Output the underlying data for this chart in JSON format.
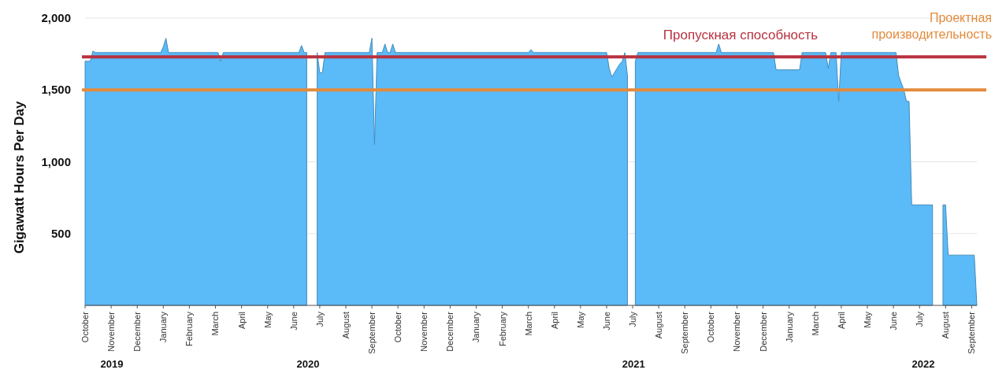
{
  "chart_data": {
    "type": "area",
    "ylabel": "Gigawatt Hours Per Day",
    "categories": [
      "October",
      null,
      null,
      null,
      null,
      null,
      null,
      null,
      null,
      null,
      "November",
      null,
      null,
      null,
      null,
      null,
      null,
      null,
      null,
      null,
      "December",
      null,
      null,
      null,
      null,
      null,
      null,
      null,
      null,
      null,
      "January",
      null,
      null,
      null,
      null,
      null,
      null,
      null,
      null,
      null,
      "February",
      null,
      null,
      null,
      null,
      null,
      null,
      null,
      null,
      null,
      "March",
      null,
      null,
      null,
      null,
      null,
      null,
      null,
      null,
      null,
      "April",
      null,
      null,
      null,
      null,
      null,
      null,
      null,
      null,
      null,
      "May",
      null,
      null,
      null,
      null,
      null,
      null,
      null,
      null,
      null,
      "June",
      null,
      null,
      null,
      null,
      null,
      null,
      null,
      null,
      null,
      "July",
      null,
      null,
      null,
      null,
      null,
      null,
      null,
      null,
      null,
      "August",
      null,
      null,
      null,
      null,
      null,
      null,
      null,
      null,
      null,
      "September",
      null,
      null,
      null,
      null,
      null,
      null,
      null,
      null,
      null,
      "October",
      null,
      null,
      null,
      null,
      null,
      null,
      null,
      null,
      null,
      "November",
      null,
      null,
      null,
      null,
      null,
      null,
      null,
      null,
      null,
      "December",
      null,
      null,
      null,
      null,
      null,
      null,
      null,
      null,
      null,
      "January",
      null,
      null,
      null,
      null,
      null,
      null,
      null,
      null,
      null,
      "February",
      null,
      null,
      null,
      null,
      null,
      null,
      null,
      null,
      null,
      "March",
      null,
      null,
      null,
      null,
      null,
      null,
      null,
      null,
      null,
      "April",
      null,
      null,
      null,
      null,
      null,
      null,
      null,
      null,
      null,
      "May",
      null,
      null,
      null,
      null,
      null,
      null,
      null,
      null,
      null,
      "June",
      null,
      null,
      null,
      null,
      null,
      null,
      null,
      null,
      null,
      "July",
      null,
      null,
      null,
      null,
      null,
      null,
      null,
      null,
      null,
      "August",
      null,
      null,
      null,
      null,
      null,
      null,
      null,
      null,
      null,
      "September",
      null,
      null,
      null,
      null,
      null,
      null,
      null,
      null,
      null,
      "October",
      null,
      null,
      null,
      null,
      null,
      null,
      null,
      null,
      null,
      "November",
      null,
      null,
      null,
      null,
      null,
      null,
      null,
      null,
      null,
      "December",
      null,
      null,
      null,
      null,
      null,
      null,
      null,
      null,
      null,
      "January",
      null,
      null,
      null,
      null,
      null,
      null,
      null,
      null,
      null,
      "March",
      null,
      null,
      null,
      null,
      null,
      null,
      null,
      null,
      null,
      "April",
      null,
      null,
      null,
      null,
      null,
      null,
      null,
      null,
      null,
      "May",
      null,
      null,
      null,
      null,
      null,
      null,
      null,
      null,
      null,
      "June",
      null,
      null,
      null,
      null,
      null,
      null,
      null,
      null,
      null,
      "July",
      null,
      null,
      null,
      null,
      null,
      null,
      null,
      null,
      null,
      "August",
      null,
      null,
      null,
      null,
      null,
      null,
      null,
      null,
      null,
      "September",
      null,
      null
    ],
    "series": [
      {
        "color": "#5bbaf8",
        "values": [
          1700,
          1700,
          1700,
          1770,
          1760,
          1760,
          1760,
          1760,
          1760,
          1760,
          1760,
          1760,
          1760,
          1760,
          1760,
          1760,
          1760,
          1760,
          1760,
          1760,
          1760,
          1760,
          1760,
          1760,
          1760,
          1760,
          1760,
          1760,
          1760,
          1760,
          1800,
          1860,
          1760,
          1760,
          1760,
          1760,
          1760,
          1760,
          1760,
          1760,
          1760,
          1760,
          1760,
          1760,
          1760,
          1760,
          1760,
          1760,
          1760,
          1760,
          1760,
          1760,
          1700,
          1760,
          1760,
          1760,
          1760,
          1760,
          1760,
          1760,
          1760,
          1760,
          1760,
          1760,
          1760,
          1760,
          1760,
          1760,
          1760,
          1760,
          1760,
          1760,
          1760,
          1760,
          1760,
          1760,
          1760,
          1760,
          1760,
          1760,
          1760,
          1760,
          1760,
          1810,
          1760,
          1760,
          null,
          null,
          null,
          1760,
          1620,
          1620,
          1760,
          1760,
          1760,
          1760,
          1760,
          1760,
          1760,
          1760,
          1760,
          1760,
          1760,
          1760,
          1760,
          1760,
          1760,
          1760,
          1760,
          1760,
          1860,
          1120,
          1760,
          1760,
          1760,
          1820,
          1760,
          1760,
          1820,
          1760,
          1760,
          1760,
          1760,
          1760,
          1760,
          1760,
          1760,
          1760,
          1760,
          1760,
          1760,
          1760,
          1760,
          1760,
          1760,
          1760,
          1760,
          1760,
          1760,
          1760,
          1760,
          1760,
          1760,
          1760,
          1760,
          1760,
          1760,
          1760,
          1760,
          1760,
          1760,
          1760,
          1760,
          1760,
          1760,
          1760,
          1760,
          1760,
          1760,
          1760,
          1760,
          1760,
          1760,
          1760,
          1760,
          1760,
          1760,
          1760,
          1760,
          1760,
          1760,
          1780,
          1760,
          1760,
          1760,
          1760,
          1760,
          1760,
          1760,
          1760,
          1760,
          1760,
          1760,
          1760,
          1760,
          1760,
          1760,
          1760,
          1760,
          1760,
          1760,
          1760,
          1760,
          1760,
          1760,
          1760,
          1760,
          1760,
          1760,
          1760,
          1760,
          1650,
          1590,
          1620,
          1650,
          1680,
          1700,
          1760,
          1600,
          null,
          null,
          1700,
          1760,
          1760,
          1760,
          1760,
          1760,
          1760,
          1760,
          1760,
          1760,
          1760,
          1760,
          1760,
          1760,
          1760,
          1760,
          1760,
          1760,
          1760,
          1760,
          1760,
          1760,
          1760,
          1760,
          1760,
          1760,
          1760,
          1760,
          1760,
          1760,
          1760,
          1760,
          1820,
          1760,
          1760,
          1760,
          1760,
          1760,
          1760,
          1760,
          1760,
          1760,
          1760,
          1760,
          1760,
          1760,
          1760,
          1760,
          1760,
          1760,
          1760,
          1760,
          1760,
          1760,
          1640,
          1640,
          1640,
          1640,
          1640,
          1640,
          1640,
          1640,
          1640,
          1640,
          1760,
          1760,
          1760,
          1760,
          1760,
          1760,
          1760,
          1760,
          1760,
          1760,
          1650,
          1760,
          1760,
          1760,
          1420,
          1760,
          1760,
          1760,
          1760,
          1760,
          1760,
          1760,
          1760,
          1760,
          1760,
          1760,
          1760,
          1760,
          1760,
          1760,
          1760,
          1760,
          1760,
          1760,
          1760,
          1760,
          1760,
          1600,
          1550,
          1500,
          1420,
          1420,
          700,
          700,
          700,
          700,
          700,
          700,
          700,
          700,
          700,
          null,
          null,
          null,
          700,
          700,
          350,
          350,
          350,
          350,
          350,
          350,
          350,
          350,
          350,
          350,
          350,
          0
        ]
      }
    ],
    "ylim": [
      0,
      2000
    ],
    "yticks": [
      {
        "value": 500,
        "label": "500"
      },
      {
        "value": 1000,
        "label": "1,000"
      },
      {
        "value": 1500,
        "label": "1,500"
      },
      {
        "value": 2000,
        "label": "2,000"
      }
    ],
    "grid": "y",
    "ref_lines": [
      {
        "axis": "y",
        "value": 1730,
        "label": "Пропускная способность",
        "color": "#b8323f"
      },
      {
        "axis": "y",
        "value": 1500,
        "label": "Проектная производительность",
        "color": "#e38b3c"
      }
    ],
    "annotations": [
      "2019",
      "2020",
      "2021",
      "2022"
    ]
  }
}
